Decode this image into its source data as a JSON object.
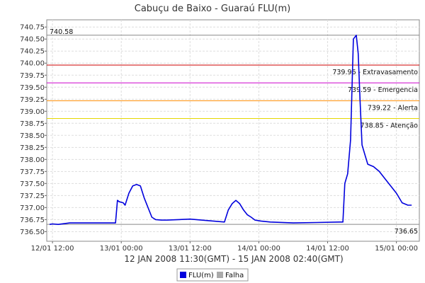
{
  "chart_data": {
    "type": "line",
    "title": "Cabuçu de Baixo - Guaraú FLU(m)",
    "xlabel": "12 JAN 2008 11:30(GMT) - 15 JAN 2008 02:40(GMT)",
    "ylabel": "",
    "xlim": [
      "2008-01-12T11:00",
      "2008-01-15T04:00"
    ],
    "ylim": [
      736.3,
      740.9
    ],
    "grid": true,
    "x_ticks": [
      {
        "t": "2008-01-12T12:00",
        "label": "12/01 12:00"
      },
      {
        "t": "2008-01-13T00:00",
        "label": "13/01 00:00"
      },
      {
        "t": "2008-01-13T12:00",
        "label": "13/01 12:00"
      },
      {
        "t": "2008-01-14T00:00",
        "label": "14/01 00:00"
      },
      {
        "t": "2008-01-14T12:00",
        "label": "14/01 12:00"
      },
      {
        "t": "2008-01-15T00:00",
        "label": "15/01 00:00"
      }
    ],
    "y_ticks": [
      "736.50",
      "736.75",
      "737.00",
      "737.25",
      "737.50",
      "737.75",
      "738.00",
      "738.25",
      "738.50",
      "738.75",
      "739.00",
      "739.25",
      "739.50",
      "739.75",
      "740.00",
      "740.25",
      "740.50",
      "740.75"
    ],
    "thresholds": [
      {
        "value": 739.96,
        "label": "739.96 - Extravasamento",
        "color": "#cc0000"
      },
      {
        "value": 739.59,
        "label": "739.59 - Emergencia",
        "color": "#cc00cc"
      },
      {
        "value": 739.22,
        "label": "739.22 - Alerta",
        "color": "#ff8c00"
      },
      {
        "value": 738.85,
        "label": "738.85 - Atenção",
        "color": "#e6d800"
      }
    ],
    "max_line": {
      "value": 740.58,
      "label": "740.58",
      "color": "#888888"
    },
    "min_line": {
      "value": 736.65,
      "label": "736.65",
      "color": "#888888"
    },
    "series": [
      {
        "name": "FLU(m)",
        "color": "#0000dd",
        "x": [
          "2008-01-12T11:30",
          "2008-01-12T12:00",
          "2008-01-12T13:00",
          "2008-01-12T15:00",
          "2008-01-12T18:00",
          "2008-01-12T21:00",
          "2008-01-12T23:00",
          "2008-01-12T23:20",
          "2008-01-12T23:40",
          "2008-01-13T00:20",
          "2008-01-13T00:40",
          "2008-01-13T01:20",
          "2008-01-13T02:00",
          "2008-01-13T02:40",
          "2008-01-13T03:20",
          "2008-01-13T04:00",
          "2008-01-13T04:40",
          "2008-01-13T05:20",
          "2008-01-13T06:00",
          "2008-01-13T07:00",
          "2008-01-13T08:00",
          "2008-01-13T12:00",
          "2008-01-13T16:00",
          "2008-01-13T18:00",
          "2008-01-13T18:40",
          "2008-01-13T19:20",
          "2008-01-13T20:00",
          "2008-01-13T20:40",
          "2008-01-13T21:20",
          "2008-01-13T22:00",
          "2008-01-13T22:40",
          "2008-01-13T23:20",
          "2008-01-14T00:20",
          "2008-01-14T02:00",
          "2008-01-14T06:00",
          "2008-01-14T10:00",
          "2008-01-14T14:00",
          "2008-01-14T14:40",
          "2008-01-14T15:00",
          "2008-01-14T15:30",
          "2008-01-14T16:00",
          "2008-01-14T16:30",
          "2008-01-14T17:00",
          "2008-01-14T17:20",
          "2008-01-14T17:40",
          "2008-01-14T18:00",
          "2008-01-14T18:30",
          "2008-01-14T19:00",
          "2008-01-14T20:00",
          "2008-01-14T21:00",
          "2008-01-14T22:00",
          "2008-01-14T23:00",
          "2008-01-15T00:00",
          "2008-01-15T01:00",
          "2008-01-15T02:00",
          "2008-01-15T02:40"
        ],
        "y": [
          736.65,
          736.66,
          736.65,
          736.68,
          736.68,
          736.68,
          736.68,
          737.15,
          737.12,
          737.1,
          737.05,
          737.3,
          737.45,
          737.48,
          737.45,
          737.2,
          737.0,
          736.8,
          736.75,
          736.74,
          736.74,
          736.76,
          736.72,
          736.7,
          736.95,
          737.08,
          737.15,
          737.08,
          736.95,
          736.85,
          736.8,
          736.74,
          736.72,
          736.7,
          736.68,
          736.69,
          736.7,
          736.7,
          737.5,
          737.7,
          738.4,
          740.5,
          740.58,
          740.2,
          739.2,
          738.3,
          738.1,
          737.9,
          737.85,
          737.75,
          737.6,
          737.45,
          737.3,
          737.1,
          737.05,
          737.05
        ]
      },
      {
        "name": "Falha",
        "color": "#aaaaaa",
        "x": [],
        "y": []
      }
    ]
  }
}
